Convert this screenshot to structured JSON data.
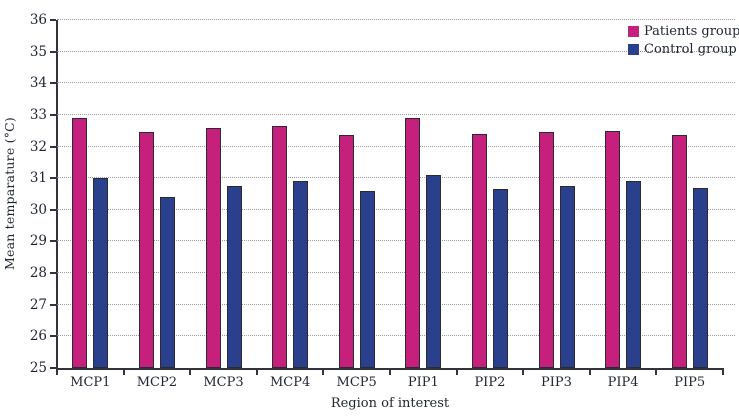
{
  "chart_data": {
    "type": "bar",
    "title": "",
    "xlabel": "Region of interest",
    "ylabel": "Mean temparature (°C)",
    "ylim": [
      25,
      36
    ],
    "ytick_step": 1,
    "grid": "horizontal dotted gridlines at each integer temperature",
    "legend_position": "top-right inside plot area",
    "categories": [
      "MCP1",
      "MCP2",
      "MCP3",
      "MCP4",
      "MCP5",
      "PIP1",
      "PIP2",
      "PIP3",
      "PIP4",
      "PIP5"
    ],
    "series": [
      {
        "name": "Patients group",
        "color": "#C4207C",
        "values": [
          32.9,
          32.45,
          32.6,
          32.65,
          32.35,
          32.9,
          32.4,
          32.45,
          32.5,
          32.35
        ]
      },
      {
        "name": "Control group",
        "color": "#2A408C",
        "values": [
          31.0,
          30.4,
          30.75,
          30.9,
          30.6,
          31.1,
          30.65,
          30.75,
          30.9,
          30.7
        ]
      }
    ]
  },
  "colors": {
    "background": "#ffffff",
    "axis": "#33333b",
    "gridline": "#9c9c9c",
    "text": "#1e2433",
    "bar_outline": "#2a2a33",
    "patients": "#C4207C",
    "control": "#2A408C"
  }
}
